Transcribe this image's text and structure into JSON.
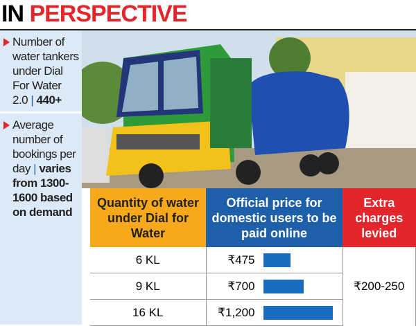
{
  "header": {
    "title_black": "IN",
    "title_red": "PERSPECTIVE"
  },
  "sidebar": [
    {
      "text": "Number of water tankers under Dial For Water 2.0",
      "separator": "|",
      "highlight": "440+"
    },
    {
      "text": "Average number of bookings per day",
      "separator": "|",
      "highlight": "varies from 1300-1600 based on demand"
    }
  ],
  "table": {
    "columns": [
      "Quantity of water under Dial for Water",
      "Official price for domestic users to be paid online",
      "Extra charges levied"
    ],
    "rows": [
      {
        "quantity": "6 KL",
        "price": "₹475",
        "price_value": 475
      },
      {
        "quantity": "9 KL",
        "price": "₹700",
        "price_value": 700
      },
      {
        "quantity": "16 KL",
        "price": "₹1,200",
        "price_value": 1200
      }
    ],
    "extra_charges": "₹200-250"
  }
}
